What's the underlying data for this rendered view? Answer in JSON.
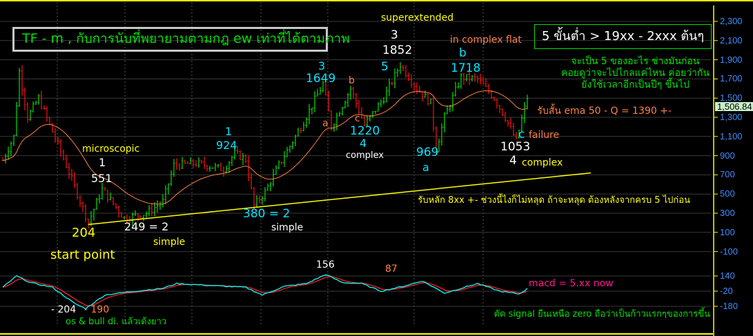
{
  "title": "TF - m , กับการนับที่พยายามตามกฎ ew เท่าที่ได้ตามภาพ",
  "target_box": "5 ขั้นต่ำ > 19xx - 2xxx ต้นๆ",
  "comment_lines": [
    "จะเป็น 5 ของอะไร ช่างมันก่อน",
    "คอยดูว่าจะไปไกลแค่ไหน ค่อยว่ากัน",
    "ยังใช้เวลาอีกเป็นปีๆ ขึ้นไป"
  ],
  "ema_note": "รับสั้น ema 50 - Q = 1390 +-",
  "support_note": "รับหลัก 8xx +- ช่วงนี้ไงก็ไม่หลุด ถ้าจะหลุด ต้องหลังจากครบ 5 ไปก่อน",
  "last_price": "1,506.84",
  "labels": {
    "superextended": "superextended",
    "w3_top": "3",
    "w3_top_val": "1852",
    "w5": "5",
    "in_complex_flat": "in complex flat",
    "b_label": "b",
    "b_val": "1718",
    "w3_1649": "3",
    "val_1649": "1649",
    "sub_b": "b",
    "sub_a": "a",
    "sub_c": "c",
    "val_1220": "1220",
    "w4_1220": "4",
    "complex_1": "complex",
    "val_969": "969",
    "a_969": "a",
    "val_1053": "1053",
    "w4_1053": "4",
    "complex_2": "complex",
    "c_1053": "c",
    "failure": "failure",
    "microscopic": "microscopic",
    "w1_551": "1",
    "val_551": "551",
    "w1_924": "1",
    "val_924": "924",
    "val_204": "204",
    "start_point": "start point",
    "val_249": "249 = 2",
    "simple_1": "simple",
    "val_380": "380 = 2",
    "simple_2": "simple"
  },
  "macd_labels": {
    "peak_156": "156",
    "peak_87": "87",
    "low_204": "- 204",
    "low_190": "- 190",
    "os_note": "os & bull di. แล้วเด้งยาว",
    "macd_now": "macd = 5.xx now",
    "signal_note": "ตัด signal ยืนเหนือ zero ถือว่าเป็นก้าวแรกๆของการขึ้น"
  },
  "colors": {
    "up": "#00e000",
    "down": "#ff1010",
    "ema": "#ff8040",
    "trend": "#ffff00",
    "macd": "#00ffff",
    "signal": "#ff2020",
    "axis": "#3c8cff"
  },
  "chart_data": [
    {
      "type": "bar",
      "description_kind": "ohlc price with ema 50",
      "y_ticks": [
        2300,
        2100,
        1900,
        1700,
        1500,
        1300,
        1100,
        900,
        700,
        500,
        300,
        100,
        -100
      ],
      "ylim": [
        -150,
        2450
      ],
      "grid": true,
      "anchors": [
        [
          0,
          850
        ],
        [
          4,
          1100
        ],
        [
          6,
          1780
        ],
        [
          9,
          1300
        ],
        [
          13,
          1500
        ],
        [
          18,
          1150
        ],
        [
          23,
          800
        ],
        [
          31,
          204
        ],
        [
          36,
          551
        ],
        [
          44,
          249
        ],
        [
          52,
          300
        ],
        [
          58,
          420
        ],
        [
          62,
          800
        ],
        [
          70,
          820
        ],
        [
          80,
          760
        ],
        [
          84,
          924
        ],
        [
          88,
          860
        ],
        [
          91,
          380
        ],
        [
          95,
          520
        ],
        [
          100,
          800
        ],
        [
          108,
          1200
        ],
        [
          116,
          1649
        ],
        [
          119,
          1200
        ],
        [
          126,
          1600
        ],
        [
          131,
          1220
        ],
        [
          138,
          1500
        ],
        [
          144,
          1852
        ],
        [
          150,
          1600
        ],
        [
          155,
          1450
        ],
        [
          157,
          969
        ],
        [
          160,
          1300
        ],
        [
          166,
          1718
        ],
        [
          172,
          1700
        ],
        [
          178,
          1500
        ],
        [
          182,
          1300
        ],
        [
          186,
          1053
        ],
        [
          190,
          1506.84
        ]
      ],
      "ema_period": 50,
      "trendline": [
        [
          31,
          204
        ],
        [
          213,
          720
        ]
      ]
    },
    {
      "type": "line",
      "description_kind": "macd",
      "y_ticks": [
        140,
        -20,
        -180
      ],
      "macd_anchors": [
        [
          0,
          20
        ],
        [
          5,
          140
        ],
        [
          10,
          70
        ],
        [
          18,
          20
        ],
        [
          26,
          -150
        ],
        [
          30,
          -204
        ],
        [
          37,
          -60
        ],
        [
          45,
          -30
        ],
        [
          58,
          10
        ],
        [
          63,
          60
        ],
        [
          75,
          40
        ],
        [
          88,
          20
        ],
        [
          94,
          -60
        ],
        [
          102,
          30
        ],
        [
          110,
          60
        ],
        [
          117,
          156
        ],
        [
          123,
          70
        ],
        [
          130,
          60
        ],
        [
          137,
          -20
        ],
        [
          145,
          30
        ],
        [
          152,
          87
        ],
        [
          160,
          -40
        ],
        [
          172,
          60
        ],
        [
          180,
          -20
        ],
        [
          187,
          -50
        ],
        [
          190,
          5
        ]
      ]
    }
  ]
}
